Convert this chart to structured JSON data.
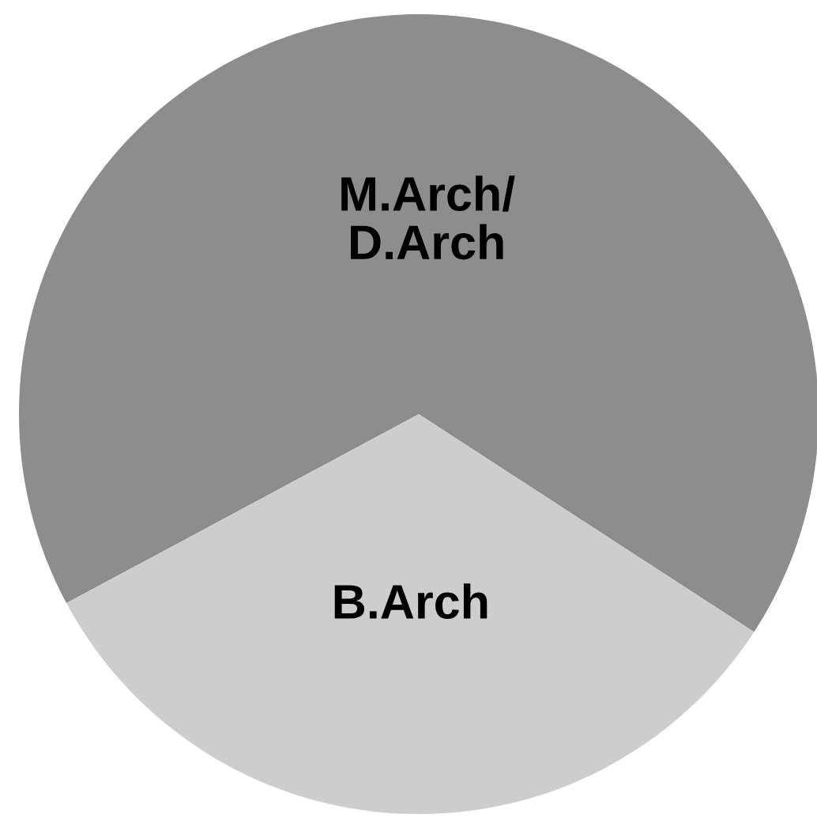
{
  "chart_data": {
    "type": "pie",
    "categories": [
      "M.Arch/\nD.Arch",
      "B.Arch"
    ],
    "values": [
      67,
      33
    ],
    "colors": [
      "#8d8d8d",
      "#cdcdcd"
    ],
    "legend": false
  }
}
